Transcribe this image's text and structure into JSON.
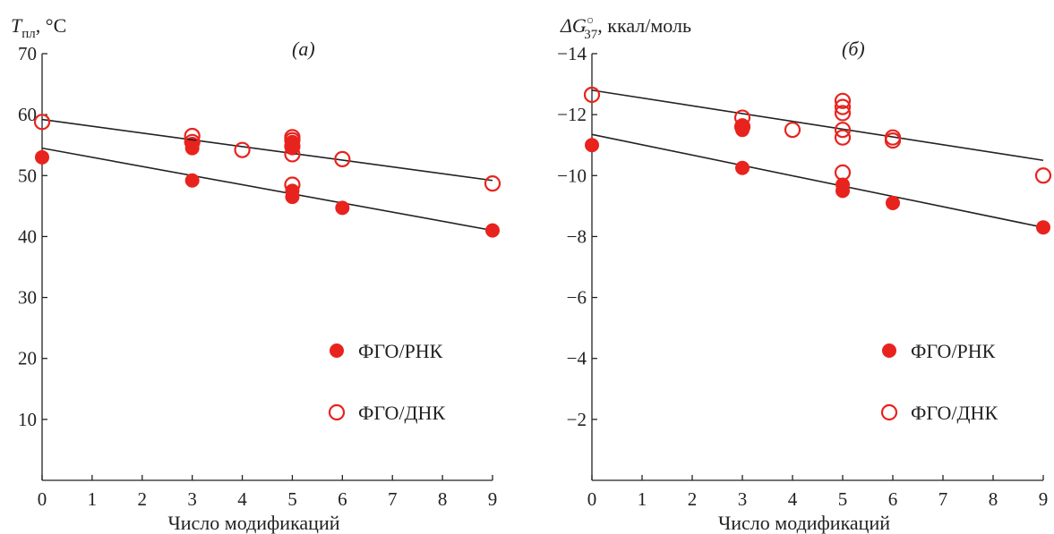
{
  "chart_data": [
    {
      "type": "scatter",
      "panel_label": "(а)",
      "ylabel_symbol": "T",
      "ylabel_sub": "пл",
      "ylabel_rest": ", °C",
      "xlabel": "Число модификаций",
      "xlim": [
        0,
        9
      ],
      "ylim": [
        0,
        70
      ],
      "xticks": [
        0,
        1,
        2,
        3,
        4,
        5,
        6,
        7,
        8,
        9
      ],
      "yticks": [
        10,
        20,
        30,
        40,
        50,
        60,
        70
      ],
      "ytick_labels": [
        "10",
        "20",
        "30",
        "40",
        "50",
        "60",
        "70"
      ],
      "grid": false,
      "legend_position": "lower-right",
      "series": [
        {
          "name": "ФГО/РНК",
          "marker": "filled-circle",
          "color": "#e8231e",
          "points": [
            [
              0,
              53
            ],
            [
              3,
              49.2
            ],
            [
              3,
              54.5
            ],
            [
              3,
              55.2
            ],
            [
              5,
              46.5
            ],
            [
              5,
              47.5
            ],
            [
              5,
              54.5
            ],
            [
              5,
              55.5
            ],
            [
              6,
              44.7
            ],
            [
              9,
              41
            ]
          ],
          "fit_line": [
            [
              0,
              54.5
            ],
            [
              9,
              41
            ]
          ]
        },
        {
          "name": "ФГО/ДНК",
          "marker": "open-circle",
          "color": "#e8231e",
          "points": [
            [
              0,
              58.8
            ],
            [
              3,
              55.5
            ],
            [
              3,
              56.5
            ],
            [
              4,
              54.2
            ],
            [
              5,
              48.5
            ],
            [
              5,
              53.5
            ],
            [
              5,
              54.8
            ],
            [
              5,
              55.8
            ],
            [
              5,
              56.3
            ],
            [
              6,
              52.7
            ],
            [
              9,
              48.7
            ]
          ],
          "fit_line": [
            [
              0,
              59.2
            ],
            [
              9,
              49.2
            ]
          ]
        }
      ]
    },
    {
      "type": "scatter",
      "panel_label": "(б)",
      "ylabel_prefix": "ΔG",
      "ylabel_sub": "37",
      "ylabel_sup": "○",
      "ylabel_rest": ", ккал/моль",
      "xlabel": "Число модификаций",
      "xlim": [
        0,
        9
      ],
      "ylim": [
        0,
        -14
      ],
      "xticks": [
        0,
        1,
        2,
        3,
        4,
        5,
        6,
        7,
        8,
        9
      ],
      "yticks": [
        -2,
        -4,
        -6,
        -8,
        -10,
        -12,
        -14
      ],
      "ytick_labels": [
        "−2",
        "−4",
        "−6",
        "−8",
        "−10",
        "−12",
        "−14"
      ],
      "grid": false,
      "legend_position": "lower-right",
      "series": [
        {
          "name": "ФГО/РНК",
          "marker": "filled-circle",
          "color": "#e8231e",
          "points": [
            [
              0,
              -11
            ],
            [
              3,
              -10.25
            ],
            [
              3,
              -11.5
            ],
            [
              3,
              -11.65
            ],
            [
              5,
              -9.5
            ],
            [
              5,
              -9.7
            ],
            [
              6,
              -9.1
            ],
            [
              9,
              -8.3
            ]
          ],
          "fit_line": [
            [
              0,
              -11.35
            ],
            [
              9,
              -8.3
            ]
          ]
        },
        {
          "name": "ФГО/ДНК",
          "marker": "open-circle",
          "color": "#e8231e",
          "points": [
            [
              0,
              -12.65
            ],
            [
              3,
              -11.6
            ],
            [
              3,
              -11.9
            ],
            [
              4,
              -11.5
            ],
            [
              5,
              -10.1
            ],
            [
              5,
              -11.25
            ],
            [
              5,
              -11.5
            ],
            [
              5,
              -12.05
            ],
            [
              5,
              -12.25
            ],
            [
              5,
              -12.45
            ],
            [
              6,
              -11.15
            ],
            [
              6,
              -11.25
            ],
            [
              9,
              -10
            ]
          ],
          "fit_line": [
            [
              0,
              -12.8
            ],
            [
              9,
              -10.5
            ]
          ]
        }
      ]
    }
  ]
}
